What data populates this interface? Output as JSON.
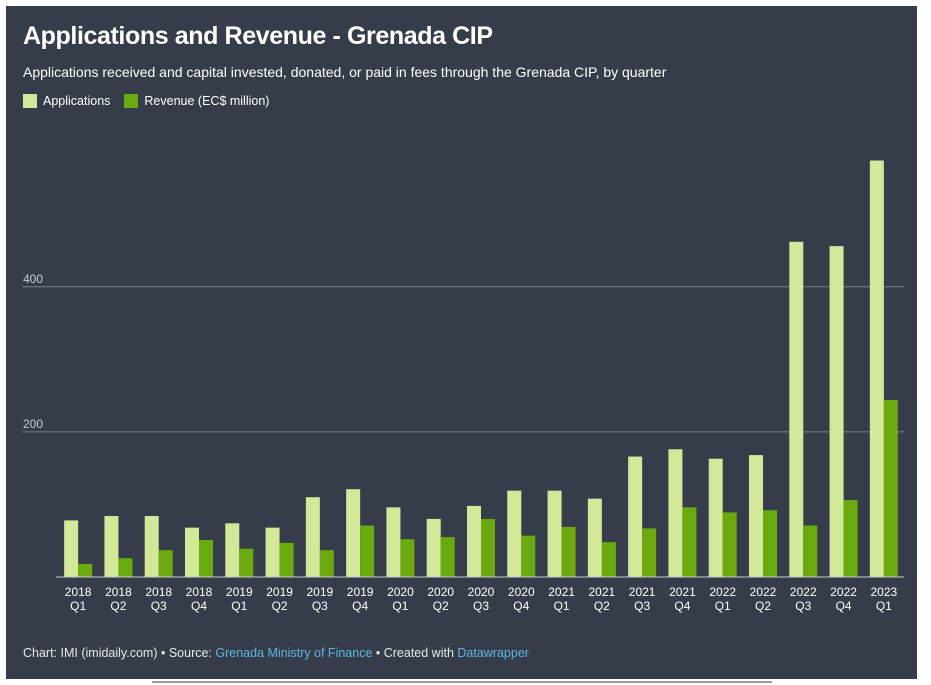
{
  "title": "Applications and Revenue - Grenada CIP",
  "subtitle": "Applications received and capital invested, donated, or paid in fees through the Grenada CIP, by quarter",
  "footer": {
    "prefix": "Chart: IMI (imidaily.com) • Source: ",
    "source": "Grenada Ministry of Finance",
    "middle": " • Created with ",
    "tool": "Datawrapper"
  },
  "colors": {
    "background": "#353d4a",
    "applications": "#d3e99a",
    "revenue": "#6aaa0f",
    "link": "#5fb6dc"
  },
  "chart_data": {
    "type": "bar",
    "categories": [
      [
        "2018",
        "Q1"
      ],
      [
        "2018",
        "Q2"
      ],
      [
        "2018",
        "Q3"
      ],
      [
        "2018",
        "Q4"
      ],
      [
        "2019",
        "Q1"
      ],
      [
        "2019",
        "Q2"
      ],
      [
        "2019",
        "Q3"
      ],
      [
        "2019",
        "Q4"
      ],
      [
        "2020",
        "Q1"
      ],
      [
        "2020",
        "Q2"
      ],
      [
        "2020",
        "Q3"
      ],
      [
        "2020",
        "Q4"
      ],
      [
        "2021",
        "Q1"
      ],
      [
        "2021",
        "Q2"
      ],
      [
        "2021",
        "Q3"
      ],
      [
        "2021",
        "Q4"
      ],
      [
        "2022",
        "Q1"
      ],
      [
        "2022",
        "Q2"
      ],
      [
        "2022",
        "Q3"
      ],
      [
        "2022",
        "Q4"
      ],
      [
        "2023",
        "Q1"
      ]
    ],
    "series": [
      {
        "name": "Applications",
        "values": [
          78,
          84,
          84,
          68,
          74,
          68,
          110,
          121,
          96,
          80,
          98,
          119,
          119,
          108,
          166,
          176,
          163,
          168,
          462,
          456,
          574
        ]
      },
      {
        "name": "Revenue (EC$ million)",
        "values": [
          18,
          26,
          37,
          51,
          39,
          47,
          37,
          71,
          52,
          55,
          80,
          57,
          69,
          48,
          67,
          96,
          89,
          92,
          71,
          106,
          244
        ]
      }
    ],
    "yticks": [
      200,
      400
    ],
    "ylim": [
      0,
      600
    ],
    "grid": true,
    "legend_position": "top-left",
    "xlabel": "",
    "ylabel": ""
  }
}
